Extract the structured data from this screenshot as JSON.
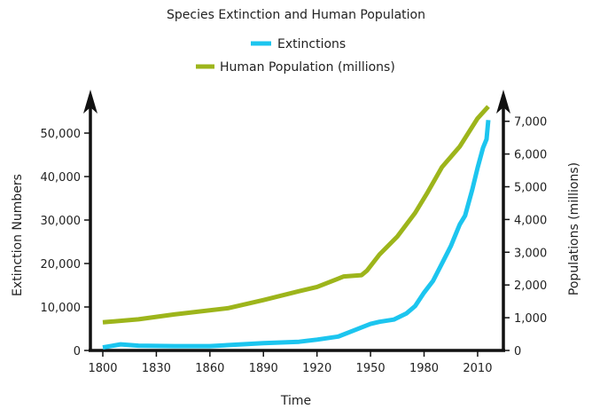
{
  "chart_data": {
    "type": "line",
    "title": "Species Extinction and Human Population",
    "xlabel": "Time",
    "ylabel": "Extinction Numbers",
    "y2label": "Populations (millions)",
    "legend_position": "top-center",
    "grid": false,
    "xlim": [
      1800,
      2020
    ],
    "ylim": [
      0,
      50000
    ],
    "y2lim": [
      0,
      7000
    ],
    "x_ticks": [
      "1800",
      "1830",
      "1860",
      "1890",
      "1920",
      "1950",
      "1980",
      "2010"
    ],
    "y_ticks": [
      "0",
      "10,000",
      "20,000",
      "30,000",
      "40,000",
      "50,000"
    ],
    "y2_ticks": [
      "0",
      "1,000",
      "2,000",
      "3,000",
      "4,000",
      "5,000",
      "6,000",
      "7,000"
    ],
    "series": [
      {
        "name": "Extinctions",
        "axis": "left",
        "color": "#1cc5ef",
        "x": [
          1800,
          1810,
          1820,
          1840,
          1860,
          1890,
          1910,
          1920,
          1932,
          1940,
          1950,
          1955,
          1963,
          1970,
          1975,
          1980,
          1985,
          1990,
          1995,
          2000,
          2003,
          2007,
          2010,
          2013,
          2015,
          2016
        ],
        "y": [
          700,
          1400,
          1100,
          1000,
          1000,
          1700,
          2000,
          2500,
          3200,
          4500,
          6100,
          6600,
          7100,
          8500,
          10200,
          13300,
          16000,
          20000,
          24000,
          29000,
          31000,
          37000,
          42000,
          46600,
          48600,
          53000
        ]
      },
      {
        "name": "Human Population (millions)",
        "axis": "right",
        "color": "#9db51b",
        "x": [
          1800,
          1820,
          1840,
          1870,
          1890,
          1910,
          1920,
          1935,
          1945,
          1948,
          1955,
          1965,
          1975,
          1982,
          1990,
          2000,
          2010,
          2016
        ],
        "y": [
          860,
          950,
          1100,
          1290,
          1540,
          1810,
          1940,
          2260,
          2300,
          2440,
          2930,
          3480,
          4200,
          4830,
          5600,
          6230,
          7090,
          7450
        ]
      }
    ]
  }
}
